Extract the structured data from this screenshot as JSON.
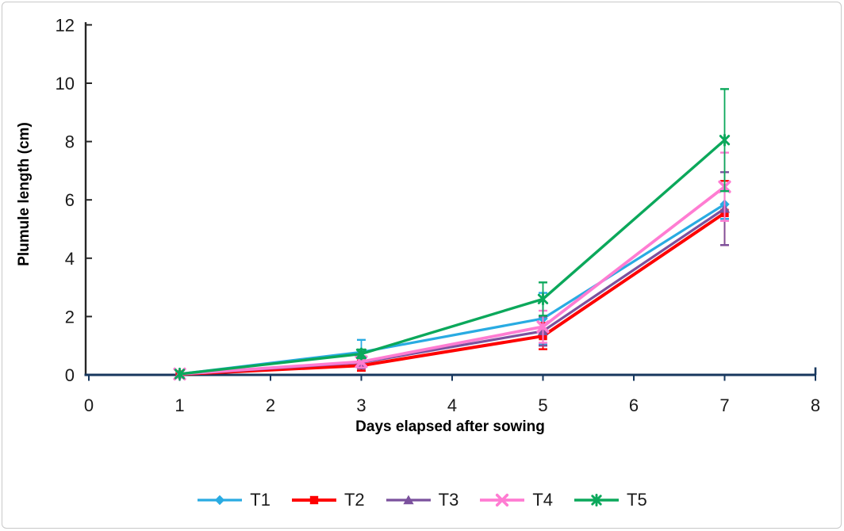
{
  "page": {
    "background": "#ffffff",
    "border_color": "#c8c8c8"
  },
  "chart_data": {
    "type": "line",
    "title": "",
    "xlabel": "Days elapsed after sowing",
    "ylabel": "Plumule length (cm)",
    "x": [
      1,
      3,
      5,
      7
    ],
    "xlim": [
      0,
      8
    ],
    "ylim": [
      0,
      12
    ],
    "x_ticks": [
      0,
      1,
      2,
      3,
      4,
      5,
      6,
      7,
      8
    ],
    "y_ticks": [
      0,
      2,
      4,
      6,
      8,
      10,
      12
    ],
    "grid": false,
    "legend_position": "bottom",
    "axis_color": "#17375E",
    "y_axis_line_color": "#262626",
    "tick_label_color": "#1a1a1a",
    "error_bars": true,
    "series": [
      {
        "name": "T1",
        "color": "#29ABE2",
        "marker": "diamond",
        "line_width": 3.2,
        "values": [
          0.03,
          0.78,
          1.93,
          5.85
        ],
        "errors": [
          0.03,
          0.42,
          0.88,
          0.5
        ]
      },
      {
        "name": "T2",
        "color": "#FE0000",
        "marker": "square",
        "line_width": 4.0,
        "values": [
          0.02,
          0.32,
          1.33,
          5.55
        ],
        "errors": [
          0.03,
          0.18,
          0.45,
          1.1
        ]
      },
      {
        "name": "T3",
        "color": "#7B519D",
        "marker": "triangle",
        "line_width": 3.2,
        "values": [
          0.02,
          0.42,
          1.5,
          5.7
        ],
        "errors": [
          0.03,
          0.2,
          0.5,
          1.25
        ]
      },
      {
        "name": "T4",
        "color": "#FF7CD2",
        "marker": "x",
        "line_width": 3.8,
        "values": [
          0.03,
          0.45,
          1.65,
          6.45
        ],
        "errors": [
          0.03,
          0.2,
          0.55,
          1.17
        ]
      },
      {
        "name": "T5",
        "color": "#0BA85B",
        "marker": "asterisk",
        "line_width": 3.4,
        "values": [
          0.03,
          0.72,
          2.6,
          8.05
        ],
        "errors": [
          0.03,
          0.15,
          0.57,
          1.75
        ]
      }
    ]
  }
}
